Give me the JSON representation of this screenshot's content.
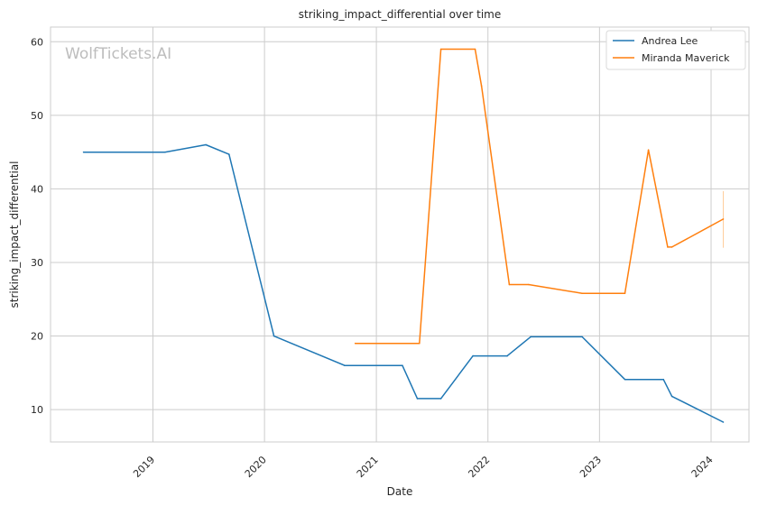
{
  "chart_data": {
    "type": "line",
    "title": "striking_impact_differential over time",
    "xlabel": "Date",
    "ylabel": "striking_impact_differential",
    "watermark": "WolfTickets.AI",
    "xlim": [
      "2018-01-31",
      "2024-05-04"
    ],
    "ylim": [
      5.6,
      62.0
    ],
    "x_ticks": [
      "2019-01-01",
      "2020-01-01",
      "2021-01-01",
      "2022-01-01",
      "2023-01-01",
      "2024-01-01"
    ],
    "x_tick_labels": [
      "2019",
      "2020",
      "2021",
      "2022",
      "2023",
      "2024"
    ],
    "y_ticks": [
      10,
      20,
      30,
      40,
      50,
      60
    ],
    "y_tick_labels": [
      "10",
      "20",
      "30",
      "40",
      "50",
      "60"
    ],
    "grid": true,
    "legend_position": "top-right",
    "series": [
      {
        "name": "Andrea Lee",
        "color": "#1f77b4",
        "x": [
          "2018-05-19",
          "2019-02-09",
          "2019-06-23",
          "2019-09-07",
          "2020-02-01",
          "2020-09-19",
          "2021-03-27",
          "2021-05-15",
          "2021-07-31",
          "2021-11-13",
          "2022-03-05",
          "2022-05-21",
          "2022-11-05",
          "2023-03-25",
          "2023-07-29",
          "2023-08-26",
          "2024-02-10"
        ],
        "y": [
          45.0,
          45.0,
          46.0,
          44.7,
          20.0,
          16.0,
          16.0,
          11.5,
          11.5,
          17.3,
          17.3,
          19.9,
          19.9,
          14.1,
          14.1,
          11.8,
          8.3
        ]
      },
      {
        "name": "Miranda Maverick",
        "color": "#ff7f0e",
        "x": [
          "2020-10-24",
          "2021-05-22",
          "2021-07-31",
          "2021-11-20",
          "2021-12-11",
          "2022-03-12",
          "2022-05-14",
          "2022-11-05",
          "2023-03-25",
          "2023-06-10",
          "2023-08-12",
          "2023-08-26",
          "2024-02-10"
        ],
        "y": [
          19.0,
          19.0,
          59.0,
          59.0,
          54.0,
          27.0,
          27.0,
          25.8,
          25.8,
          45.3,
          32.1,
          32.1,
          35.9
        ]
      }
    ],
    "error_bar": {
      "series": "Miranda Maverick",
      "x": "2024-02-10",
      "low": 32.0,
      "high": 39.7,
      "color": "#ffcc99"
    }
  }
}
